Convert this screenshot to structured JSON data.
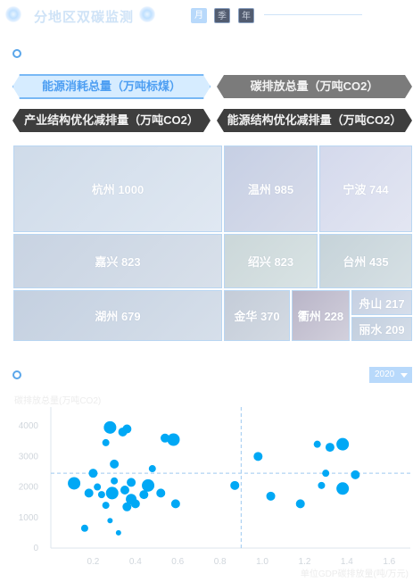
{
  "header": {
    "title": "分地区双碳监测",
    "periods": [
      "月",
      "季",
      "年"
    ]
  },
  "metric_tabs": [
    "能源消耗总量（万吨标煤）",
    "碳排放总量（万吨CO2）",
    "产业结构优化减排量（万吨CO2）",
    "能源结构优化减排量（万吨CO2）"
  ],
  "treemap": {
    "cells": [
      {
        "label": "杭州 1000",
        "name": "杭州",
        "value": 1000
      },
      {
        "label": "温州 985",
        "name": "温州",
        "value": 985
      },
      {
        "label": "宁波 744",
        "name": "宁波",
        "value": 744
      },
      {
        "label": "嘉兴 823",
        "name": "嘉兴",
        "value": 823
      },
      {
        "label": "绍兴 823",
        "name": "绍兴",
        "value": 823
      },
      {
        "label": "台州 435",
        "name": "台州",
        "value": 435
      },
      {
        "label": "湖州 679",
        "name": "湖州",
        "value": 679
      },
      {
        "label": "金华 370",
        "name": "金华",
        "value": 370
      },
      {
        "label": "衢州 228",
        "name": "衢州",
        "value": 228
      },
      {
        "label": "舟山 217",
        "name": "舟山",
        "value": 217
      },
      {
        "label": "丽水 209",
        "name": "丽水",
        "value": 209
      }
    ]
  },
  "year_select": {
    "value": "2020"
  },
  "chart_data": {
    "type": "scatter",
    "ylabel": "碳排放总量(万吨CO2)",
    "xlabel": "单位GDP碳排放量(吨/万元)",
    "x_ticks": [
      "0.2",
      "0.4",
      "0.6",
      "0.8",
      "1.0",
      "1.2",
      "1.4",
      "1.6"
    ],
    "y_ticks": [
      "0",
      "1000",
      "2000",
      "3000",
      "4000"
    ],
    "xlim": [
      0,
      1.7
    ],
    "ylim": [
      0,
      4500
    ],
    "reference_lines": {
      "x": 0.9,
      "y": 2450
    },
    "points": [
      [
        0.11,
        2120,
        7
      ],
      [
        0.16,
        650,
        4
      ],
      [
        0.18,
        1800,
        5
      ],
      [
        0.2,
        2450,
        5
      ],
      [
        0.22,
        2000,
        4
      ],
      [
        0.24,
        1750,
        4
      ],
      [
        0.26,
        3450,
        4
      ],
      [
        0.28,
        3950,
        7
      ],
      [
        0.26,
        1400,
        4
      ],
      [
        0.28,
        900,
        3
      ],
      [
        0.29,
        1800,
        7
      ],
      [
        0.3,
        2200,
        4
      ],
      [
        0.3,
        2750,
        5
      ],
      [
        0.32,
        500,
        3
      ],
      [
        0.34,
        3800,
        5
      ],
      [
        0.36,
        3900,
        5
      ],
      [
        0.35,
        1900,
        5
      ],
      [
        0.36,
        1350,
        5
      ],
      [
        0.38,
        2150,
        5
      ],
      [
        0.38,
        1600,
        6
      ],
      [
        0.4,
        1450,
        5
      ],
      [
        0.44,
        1750,
        5
      ],
      [
        0.46,
        2050,
        7
      ],
      [
        0.48,
        2600,
        4
      ],
      [
        0.52,
        1800,
        5
      ],
      [
        0.54,
        3600,
        5
      ],
      [
        0.58,
        3550,
        7
      ],
      [
        0.59,
        1450,
        5
      ],
      [
        0.87,
        2050,
        5
      ],
      [
        0.98,
        3000,
        5
      ],
      [
        1.04,
        1700,
        5
      ],
      [
        1.18,
        1450,
        5
      ],
      [
        1.26,
        3400,
        4
      ],
      [
        1.28,
        2050,
        4
      ],
      [
        1.3,
        2450,
        4
      ],
      [
        1.32,
        3300,
        5
      ],
      [
        1.38,
        3400,
        7
      ],
      [
        1.38,
        1950,
        7
      ],
      [
        1.44,
        2400,
        5
      ]
    ],
    "grid": false,
    "color": "#00a8f5"
  }
}
